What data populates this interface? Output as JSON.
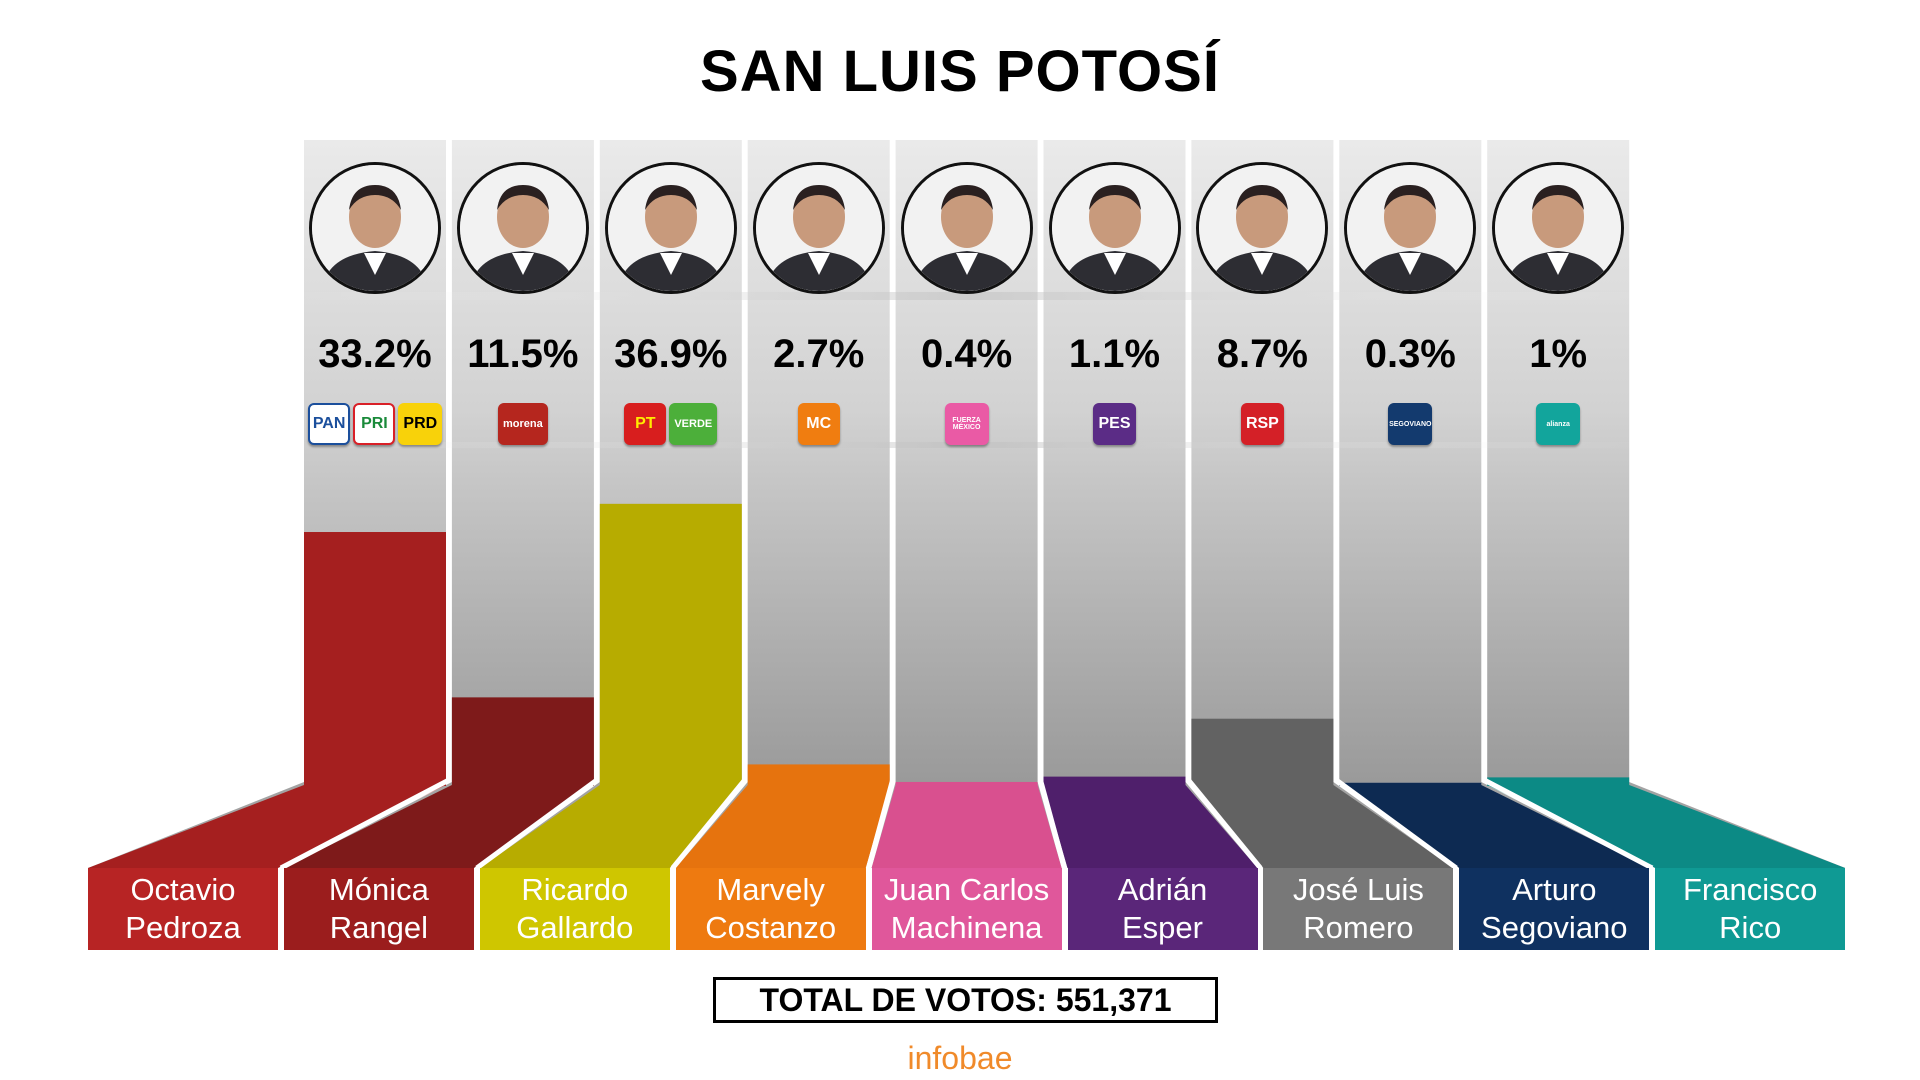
{
  "title": "SAN LUIS POTOSÍ",
  "total_label": "TOTAL DE VOTOS: 551,371",
  "brand": "infobae",
  "chart_data": {
    "type": "bar",
    "title": "SAN LUIS POTOSÍ",
    "xlabel": "",
    "ylabel": "",
    "ylim": [
      0,
      40
    ],
    "categories": [
      "Octavio Pedroza",
      "Mónica Rangel",
      "Ricardo Gallardo",
      "Marvely Costanzo",
      "Juan Carlos Machinena",
      "Adrián Esper",
      "José Luis Romero",
      "Arturo Segoviano",
      "Francisco Rico"
    ],
    "values": [
      33.2,
      11.5,
      36.9,
      2.7,
      0.4,
      1.1,
      8.7,
      0.3,
      1
    ],
    "data_labels": [
      "33.2%",
      "11.5%",
      "36.9%",
      "2.7%",
      "0.4%",
      "1.1%",
      "8.7%",
      "0.3%",
      "1%"
    ],
    "total_votes": "551,371"
  },
  "candidates": [
    {
      "name_line1": "Octavio",
      "name_line2": "Pedroza",
      "color": "#b72424",
      "bar_color": "#a51f1f",
      "parties": [
        {
          "label": "PAN",
          "bg": "#ffffff",
          "fg": "#1b4f9c",
          "border": "#1b4f9c"
        },
        {
          "label": "PRI",
          "bg": "#ffffff",
          "fg": "#1a8a3a",
          "border": "#d92027"
        },
        {
          "label": "PRD",
          "bg": "#f8d20a",
          "fg": "#000000",
          "border": "#f8d20a"
        }
      ]
    },
    {
      "name_line1": "Mónica",
      "name_line2": "Rangel",
      "color": "#9b1d1d",
      "bar_color": "#7e1a1a",
      "parties": [
        {
          "label": "morena",
          "bg": "#b5261e",
          "fg": "#ffffff",
          "border": "#b5261e"
        }
      ]
    },
    {
      "name_line1": "Ricardo",
      "name_line2": "Gallardo",
      "color": "#cfc600",
      "bar_color": "#b7ac00",
      "parties": [
        {
          "label": "PT",
          "bg": "#d81e1e",
          "fg": "#ffec00",
          "border": "#d81e1e"
        },
        {
          "label": "VERDE",
          "bg": "#4caf3a",
          "fg": "#ffffff",
          "border": "#4caf3a"
        }
      ]
    },
    {
      "name_line1": "Marvely",
      "name_line2": "Costanzo",
      "color": "#ee7a10",
      "bar_color": "#e6730e",
      "parties": [
        {
          "label": "MC",
          "bg": "#f07d10",
          "fg": "#ffffff",
          "border": "#f07d10"
        }
      ]
    },
    {
      "name_line1": "Juan Carlos",
      "name_line2": "Machinena",
      "color": "#e0579b",
      "bar_color": "#d9508f",
      "parties": [
        {
          "label": "FUERZA MÉXICO",
          "bg": "#ea5aa5",
          "fg": "#ffffff",
          "border": "#ea5aa5"
        }
      ]
    },
    {
      "name_line1": "Adrián",
      "name_line2": "Esper",
      "color": "#5a2679",
      "bar_color": "#4f1f6b",
      "parties": [
        {
          "label": "PES",
          "bg": "#5b2c86",
          "fg": "#ffffff",
          "border": "#5b2c86"
        }
      ]
    },
    {
      "name_line1": "José Luis",
      "name_line2": "Romero",
      "color": "#787878",
      "bar_color": "#626262",
      "parties": [
        {
          "label": "RSP",
          "bg": "#d42027",
          "fg": "#ffffff",
          "border": "#d42027"
        }
      ]
    },
    {
      "name_line1": "Arturo",
      "name_line2": "Segoviano",
      "color": "#0f3160",
      "bar_color": "#0d2a52",
      "parties": [
        {
          "label": "SEGOVIANO",
          "bg": "#133a6e",
          "fg": "#ffffff",
          "border": "#133a6e"
        }
      ]
    },
    {
      "name_line1": "Francisco",
      "name_line2": "Rico",
      "color": "#0f9a94",
      "bar_color": "#0c8a85",
      "parties": [
        {
          "label": "alianza",
          "bg": "#12a59c",
          "fg": "#ffffff",
          "border": "#12a59c"
        }
      ]
    }
  ]
}
